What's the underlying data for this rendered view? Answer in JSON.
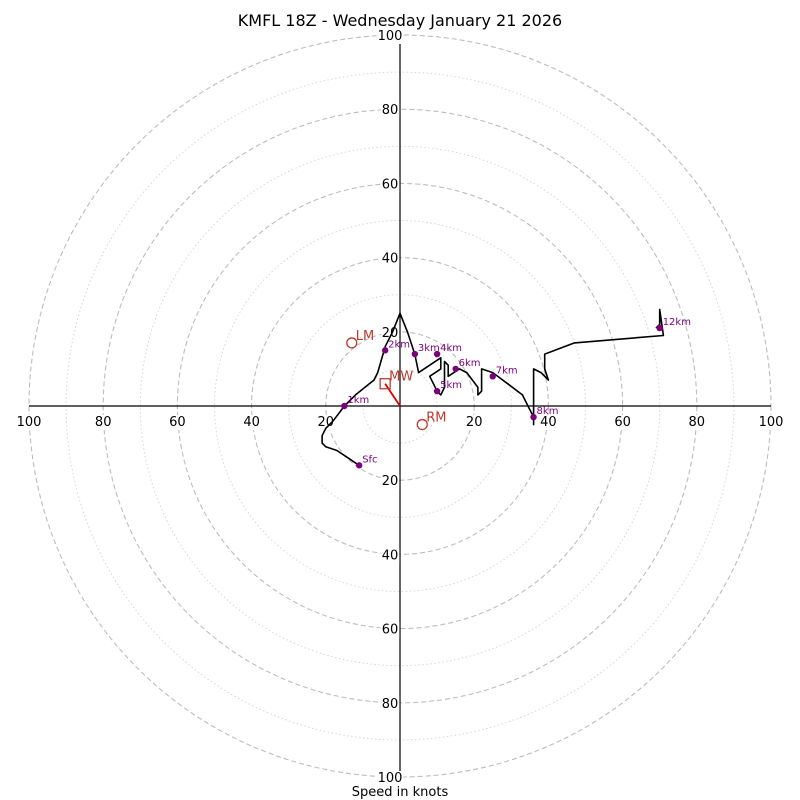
{
  "chart_data": {
    "type": "hodograph",
    "title": "KMFL 18Z - Wednesday January 21 2026",
    "xlabel": "Speed in knots",
    "units": "knots",
    "range": [
      -100,
      100
    ],
    "major_rings": [
      20,
      40,
      60,
      80,
      100
    ],
    "minor_rings": [
      10,
      30,
      50,
      70,
      90
    ],
    "x_ticks": [
      "100",
      "80",
      "60",
      "40",
      "20",
      "20",
      "40",
      "60",
      "80",
      "100"
    ],
    "y_ticks": [
      "100",
      "80",
      "60",
      "40",
      "20",
      "20",
      "40",
      "60",
      "80",
      "100"
    ],
    "tick_values": [
      -100,
      -80,
      -60,
      -40,
      -20,
      20,
      40,
      60,
      80,
      100
    ],
    "series": [
      {
        "name": "wind profile",
        "points": [
          [
            -11,
            -16
          ],
          [
            -14,
            -14
          ],
          [
            -17,
            -12
          ],
          [
            -20,
            -11
          ],
          [
            -21,
            -10
          ],
          [
            -21,
            -8
          ],
          [
            -20,
            -6
          ],
          [
            -18,
            -4
          ],
          [
            -15,
            0
          ],
          [
            -12,
            3
          ],
          [
            -7,
            7
          ],
          [
            -6,
            9
          ],
          [
            -4,
            16
          ],
          [
            -2,
            20
          ],
          [
            0,
            25
          ],
          [
            2,
            20
          ],
          [
            4,
            14
          ],
          [
            5,
            9
          ],
          [
            8,
            11
          ],
          [
            11,
            13
          ],
          [
            11,
            10
          ],
          [
            8,
            8
          ],
          [
            9,
            6
          ],
          [
            10,
            4
          ],
          [
            11,
            3
          ],
          [
            12,
            5
          ],
          [
            12,
            9
          ],
          [
            12,
            12
          ],
          [
            13,
            11
          ],
          [
            13,
            8
          ],
          [
            16,
            10
          ],
          [
            18,
            9
          ],
          [
            21,
            5
          ],
          [
            21,
            3
          ],
          [
            22,
            4
          ],
          [
            22,
            10
          ],
          [
            25,
            9
          ],
          [
            29,
            6
          ],
          [
            33,
            3
          ],
          [
            36,
            -3
          ],
          [
            36,
            -5
          ],
          [
            36,
            1
          ],
          [
            36,
            10
          ],
          [
            38,
            9
          ],
          [
            40,
            7
          ],
          [
            39,
            10
          ],
          [
            39,
            14
          ],
          [
            47,
            17
          ],
          [
            71,
            19
          ],
          [
            70,
            26
          ],
          [
            70,
            22
          ],
          [
            69,
            21
          ]
        ]
      }
    ],
    "height_markers": [
      {
        "label": "Sfc",
        "u": -11,
        "v": -16
      },
      {
        "label": "1km",
        "u": -15,
        "v": 0
      },
      {
        "label": "2km",
        "u": -4,
        "v": 15
      },
      {
        "label": "3km",
        "u": 4,
        "v": 14
      },
      {
        "label": "4km",
        "u": 10,
        "v": 14
      },
      {
        "label": "5km",
        "u": 10,
        "v": 4
      },
      {
        "label": "6km",
        "u": 15,
        "v": 10
      },
      {
        "label": "7km",
        "u": 25,
        "v": 8
      },
      {
        "label": "8km",
        "u": 36,
        "v": -3
      },
      {
        "label": "12km",
        "u": 70,
        "v": 21
      }
    ],
    "storm_motion": [
      {
        "label": "LM",
        "u": -13,
        "v": 17,
        "marker": "circle"
      },
      {
        "label": "MW",
        "u": -4,
        "v": 6,
        "marker": "square"
      },
      {
        "label": "RM",
        "u": 6,
        "v": -5,
        "marker": "circle"
      }
    ],
    "mean_wind_vector": {
      "from": [
        0,
        0
      ],
      "to": [
        -4,
        6
      ]
    },
    "colors": {
      "profile": "#000000",
      "height_markers": "#7b007b",
      "storm_motion": "#c0392b",
      "vector": "#e00000",
      "rings": "#bdbdbd"
    }
  }
}
